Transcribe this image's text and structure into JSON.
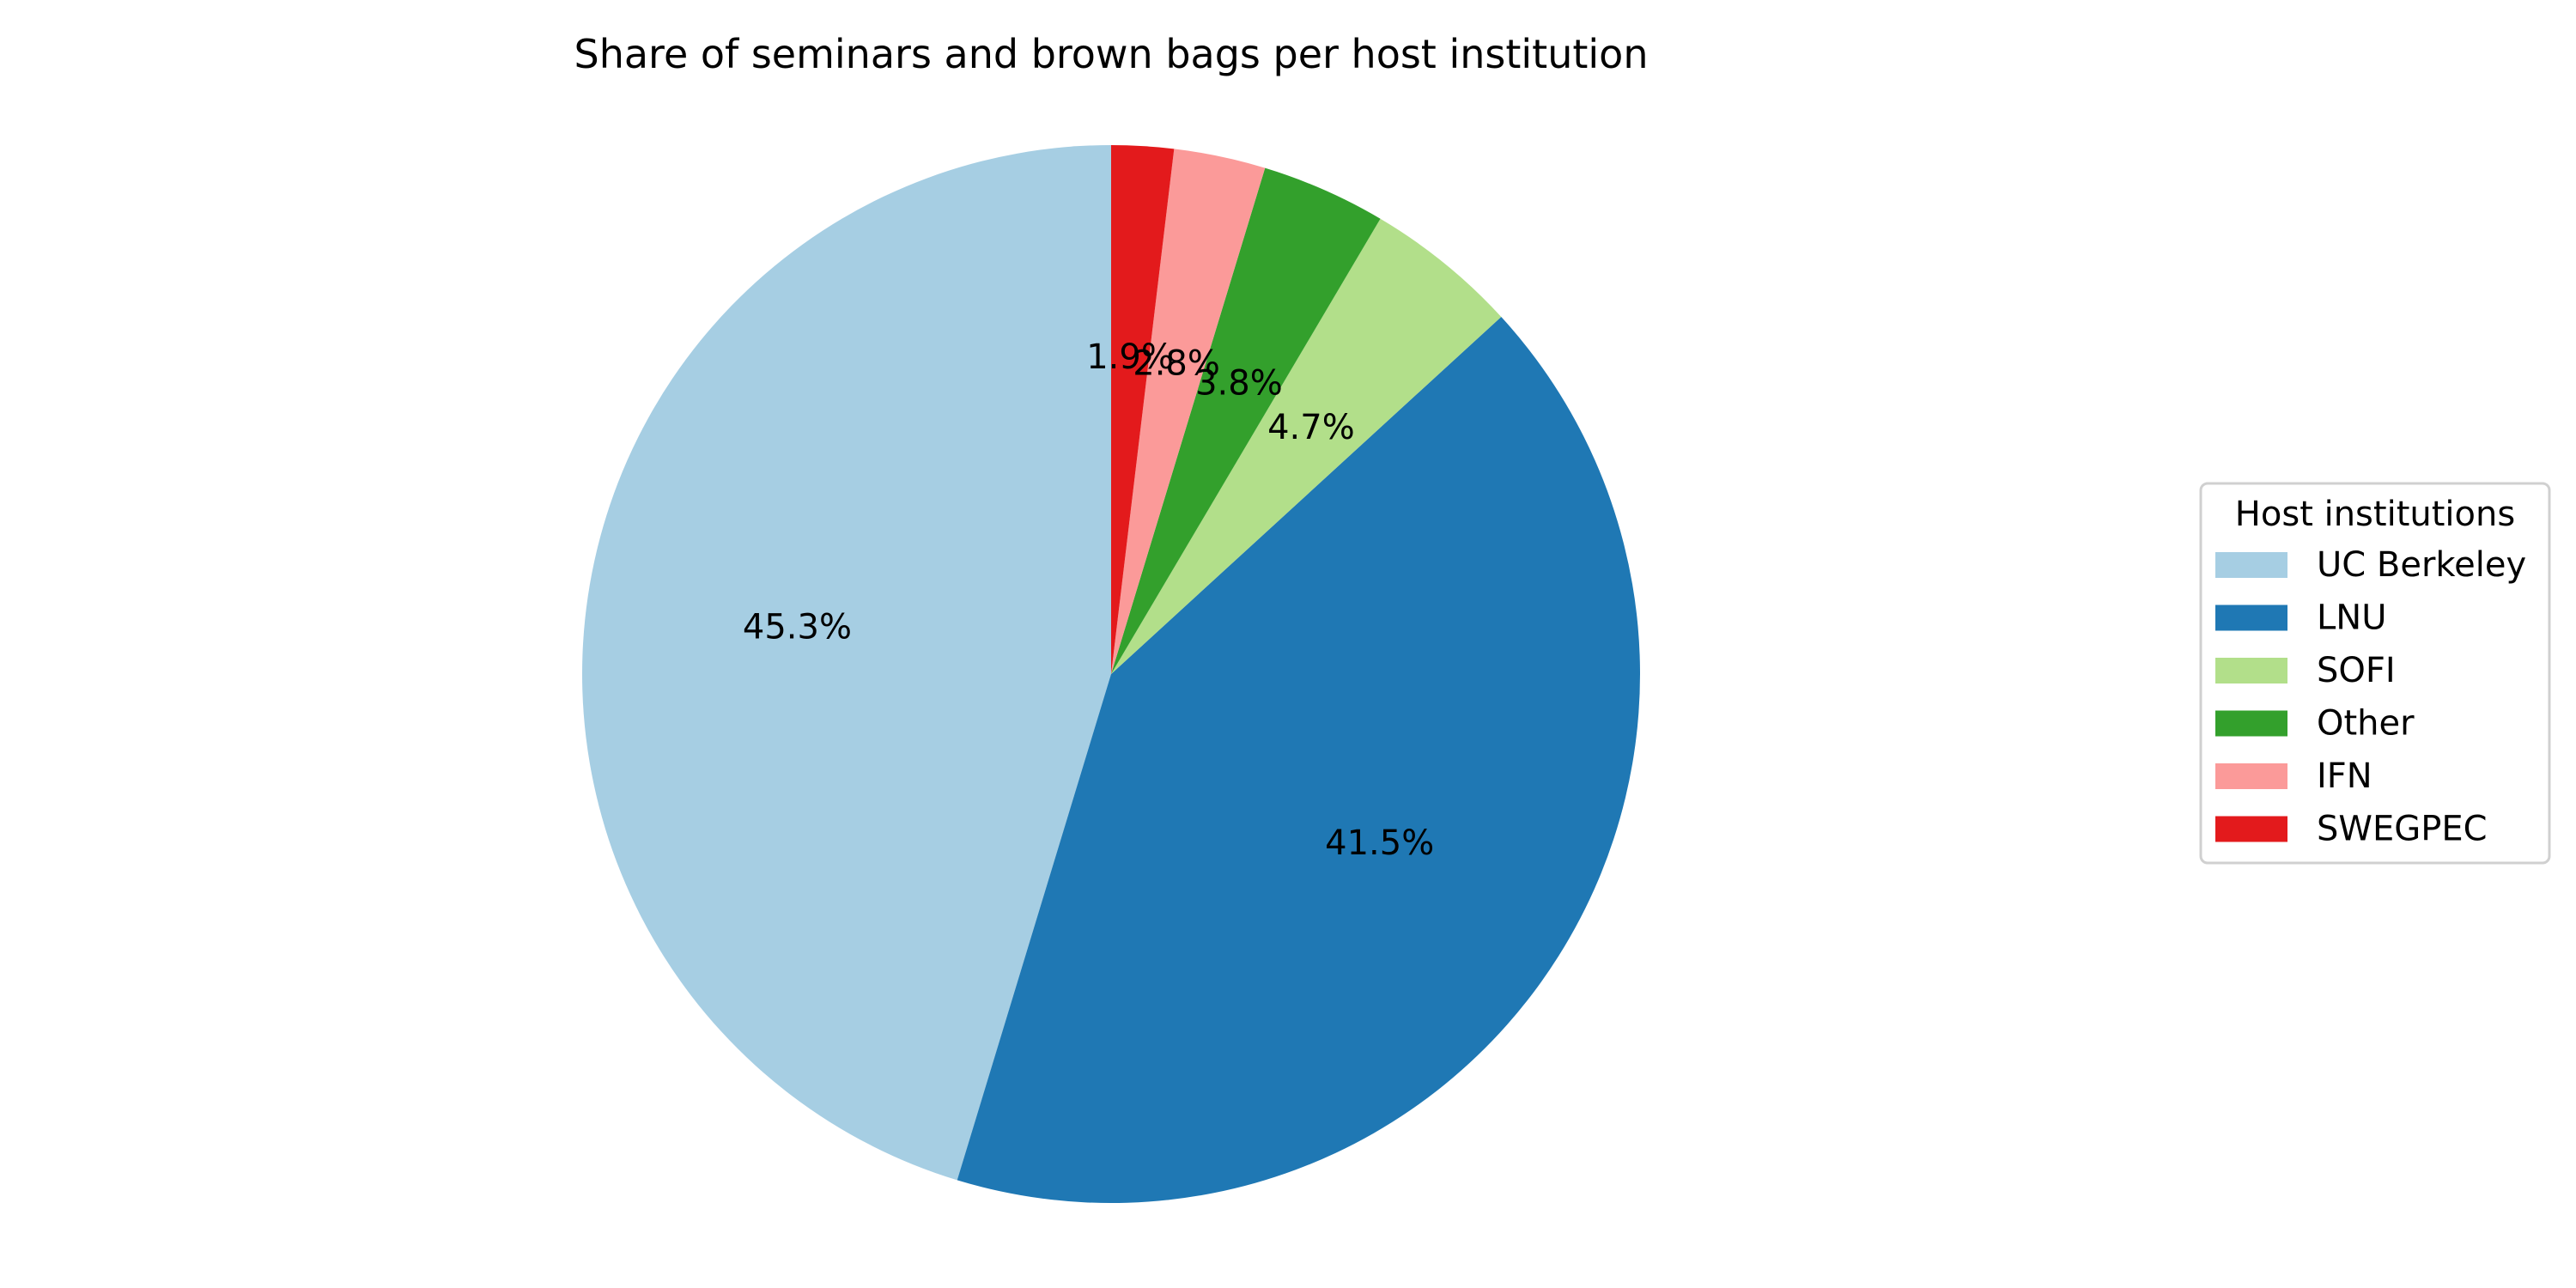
{
  "chart_data": {
    "type": "pie",
    "title": "Share of seminars and brown bags per host institution",
    "legend_title": "Host institutions",
    "legend_position": "right",
    "start_angle_deg": 90,
    "direction": "counterclockwise",
    "slices": [
      {
        "label": "UC Berkeley",
        "value": 45.3,
        "pct_label": "45.3%",
        "color": "#a6cee3"
      },
      {
        "label": "LNU",
        "value": 41.5,
        "pct_label": "41.5%",
        "color": "#1f78b4"
      },
      {
        "label": "SOFI",
        "value": 4.7,
        "pct_label": "4.7%",
        "color": "#b2df8a"
      },
      {
        "label": "Other",
        "value": 3.8,
        "pct_label": "3.8%",
        "color": "#33a02c"
      },
      {
        "label": "IFN",
        "value": 2.8,
        "pct_label": "2.8%",
        "color": "#fb9a99"
      },
      {
        "label": "SWEGPEC",
        "value": 1.9,
        "pct_label": "1.9%",
        "color": "#e31a1c"
      }
    ]
  }
}
